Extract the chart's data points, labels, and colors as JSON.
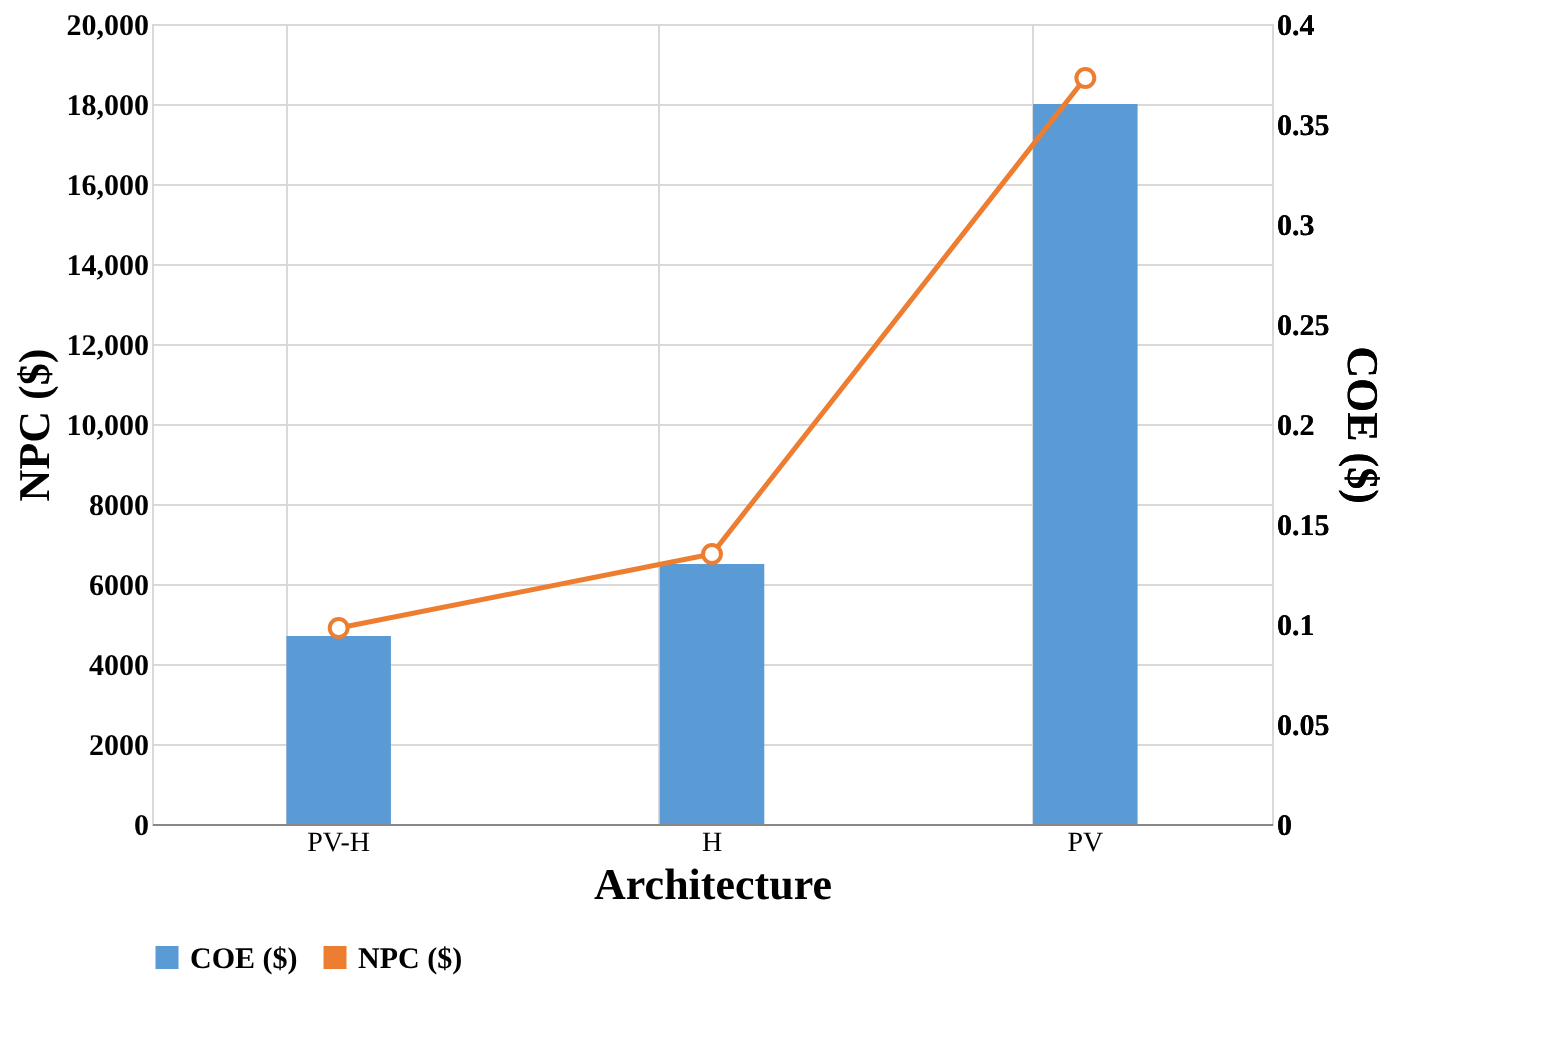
{
  "chart_data": {
    "type": "bar",
    "xlabel": "Architecture",
    "ylabel": "NPC ($)",
    "y2label": "COE ($)",
    "categories": [
      "PV-H",
      "H",
      "PV"
    ],
    "series": [
      {
        "name": "COE ($)",
        "color": "#5b9bd5",
        "values": [
          4700,
          6500,
          18000
        ]
      },
      {
        "name": "NPC ($)",
        "type": "line",
        "axis": "y2",
        "color": "#ed7d31",
        "values": [
          0.098,
          0.135,
          0.373
        ],
        "marker": "circle"
      }
    ],
    "ylim": [
      0,
      20000
    ],
    "yticks": [
      0,
      2000,
      4000,
      6000,
      8000,
      {
        "value": 10000,
        "label": "10,000"
      },
      {
        "value": 12000,
        "label": "12,000"
      },
      {
        "value": 14000,
        "label": "14,000"
      },
      {
        "value": 16000,
        "label": "16,000"
      },
      {
        "value": 18000,
        "label": "18,000"
      },
      {
        "value": 20000,
        "label": "20,000"
      }
    ],
    "y2lim": [
      0,
      0.4
    ],
    "y2ticks": [
      0,
      0.05,
      0.1,
      0.15,
      0.2,
      0.25,
      0.3,
      0.35,
      0.4
    ],
    "grid": true,
    "legend": "bottom"
  }
}
